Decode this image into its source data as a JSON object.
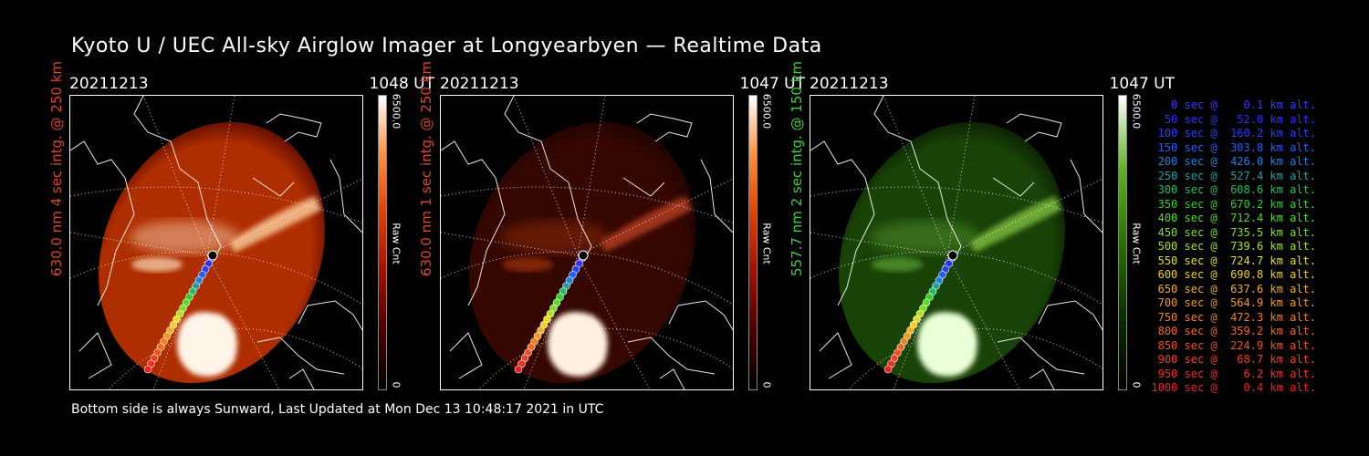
{
  "title": "Kyoto U / UEC All-sky Airglow Imager at Longyearbyen — Realtime Data",
  "footer": "Bottom side is always Sunward, Last Updated at Mon Dec 13 10:48:17 2021 in UTC",
  "colorbar": {
    "max": "6500.0",
    "min": "0",
    "unit": "Raw Cnt"
  },
  "panels": [
    {
      "date": "20211213",
      "time": "1048 UT",
      "label": "630.0 nm 4 sec intg. @ 250 km",
      "label_color": "#e0432a",
      "theme": "red-bright"
    },
    {
      "date": "20211213",
      "time": "1047 UT",
      "label": "630.0 nm 1 sec intg. @ 250 km",
      "label_color": "#e0432a",
      "theme": "red-dim"
    },
    {
      "date": "20211213",
      "time": "1047 UT",
      "label": "557.7 nm 2 sec intg. @ 150 km",
      "label_color": "#35d435",
      "theme": "green"
    }
  ],
  "legend": [
    {
      "text": "   0 sec @    0.1 km alt.",
      "color": "#3a3aff"
    },
    {
      "text": "  50 sec @   52.0 km alt.",
      "color": "#3030ff"
    },
    {
      "text": " 100 sec @  160.2 km alt.",
      "color": "#2a40ff"
    },
    {
      "text": " 150 sec @  303.8 km alt.",
      "color": "#2060ff"
    },
    {
      "text": " 200 sec @  426.0 km alt.",
      "color": "#2080e0"
    },
    {
      "text": " 250 sec @  527.4 km alt.",
      "color": "#20a0a0"
    },
    {
      "text": " 300 sec @  608.6 km alt.",
      "color": "#20c060"
    },
    {
      "text": " 350 sec @  670.2 km alt.",
      "color": "#30d030"
    },
    {
      "text": " 400 sec @  712.4 km alt.",
      "color": "#50e020"
    },
    {
      "text": " 450 sec @  735.5 km alt.",
      "color": "#80e020"
    },
    {
      "text": " 500 sec @  739.6 km alt.",
      "color": "#b0e020"
    },
    {
      "text": " 550 sec @  724.7 km alt.",
      "color": "#e0e020"
    },
    {
      "text": " 600 sec @  690.8 km alt.",
      "color": "#f0d020"
    },
    {
      "text": " 650 sec @  637.6 km alt.",
      "color": "#f0b020"
    },
    {
      "text": " 700 sec @  564.9 km alt.",
      "color": "#f09820"
    },
    {
      "text": " 750 sec @  472.3 km alt.",
      "color": "#f08020"
    },
    {
      "text": " 800 sec @  359.2 km alt.",
      "color": "#f06820"
    },
    {
      "text": " 850 sec @  224.9 km alt.",
      "color": "#f05020"
    },
    {
      "text": " 900 sec @   68.7 km alt.",
      "color": "#f04020"
    },
    {
      "text": " 950 sec @    6.2 km alt.",
      "color": "#f03020"
    },
    {
      "text": "1000 sec @    0.4 km alt.",
      "color": "#f02020"
    }
  ]
}
